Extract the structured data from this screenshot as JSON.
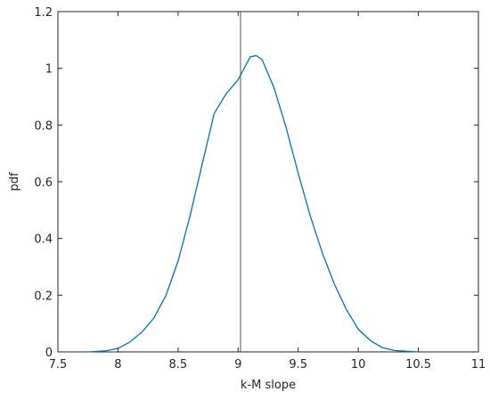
{
  "chart_data": {
    "type": "line",
    "xlabel": "k-M slope",
    "ylabel": "pdf",
    "x": [
      7.75,
      7.9,
      8.0,
      8.1,
      8.2,
      8.3,
      8.4,
      8.5,
      8.6,
      8.7,
      8.8,
      8.9,
      9.0,
      9.05,
      9.1,
      9.15,
      9.2,
      9.3,
      9.4,
      9.5,
      9.6,
      9.7,
      9.8,
      9.9,
      10.0,
      10.1,
      10.2,
      10.3,
      10.5
    ],
    "series": [
      {
        "color": "#0072bd",
        "values": [
          0,
          0.004,
          0.012,
          0.035,
          0.07,
          0.12,
          0.2,
          0.32,
          0.48,
          0.66,
          0.84,
          0.91,
          0.96,
          1.0,
          1.04,
          1.045,
          1.03,
          0.93,
          0.79,
          0.63,
          0.48,
          0.35,
          0.24,
          0.15,
          0.08,
          0.04,
          0.015,
          0.005,
          0
        ]
      }
    ],
    "vline_x": 9.02,
    "vline_color": "#555555",
    "xlim": [
      7.5,
      11
    ],
    "xticks": [
      7.5,
      8,
      8.5,
      9,
      9.5,
      10,
      10.5,
      11
    ],
    "ylim": [
      0,
      1.2
    ],
    "yticks": [
      0,
      0.2,
      0.4,
      0.6,
      0.8,
      1,
      1.2
    ]
  }
}
